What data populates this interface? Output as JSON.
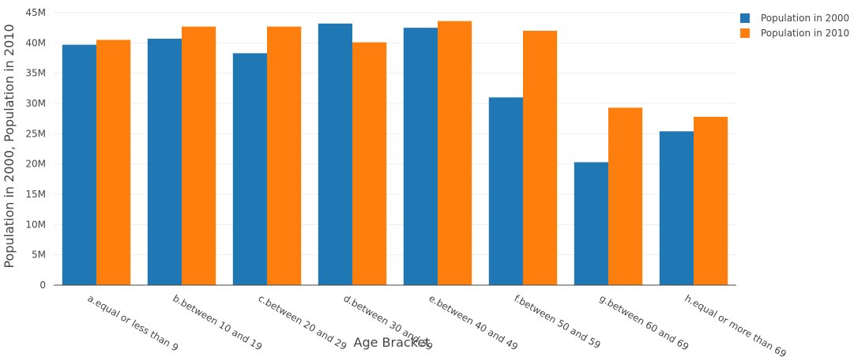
{
  "chart_data": {
    "type": "bar",
    "title": "",
    "xlabel": "Age Bracket",
    "ylabel": "Population in 2000, Population in 2010",
    "categories": [
      "a.equal or less than 9",
      "b.between 10 and 19",
      "c.between 20 and 29",
      "d.between 30 and 39",
      "e.between 40 and 49",
      "f.between 50 and 59",
      "g.between 60 and 69",
      "h.equal or more than 69"
    ],
    "series": [
      {
        "name": "Population in 2000",
        "color": "#1f77b4",
        "values": [
          39.7,
          40.7,
          38.3,
          43.2,
          42.5,
          31.0,
          20.3,
          25.4
        ]
      },
      {
        "name": "Population in 2010",
        "color": "#ff7f0e",
        "values": [
          40.5,
          42.7,
          42.7,
          40.1,
          43.6,
          42.0,
          29.3,
          27.8
        ]
      }
    ],
    "ylim": [
      0,
      45
    ],
    "yticks": [
      {
        "value": 0,
        "label": "0"
      },
      {
        "value": 5,
        "label": "5M"
      },
      {
        "value": 10,
        "label": "10M"
      },
      {
        "value": 15,
        "label": "15M"
      },
      {
        "value": 20,
        "label": "20M"
      },
      {
        "value": 25,
        "label": "25M"
      },
      {
        "value": 30,
        "label": "30M"
      },
      {
        "value": 35,
        "label": "35M"
      },
      {
        "value": 40,
        "label": "40M"
      },
      {
        "value": 45,
        "label": "45M"
      }
    ],
    "grid": true,
    "legend_position": "top-right"
  }
}
